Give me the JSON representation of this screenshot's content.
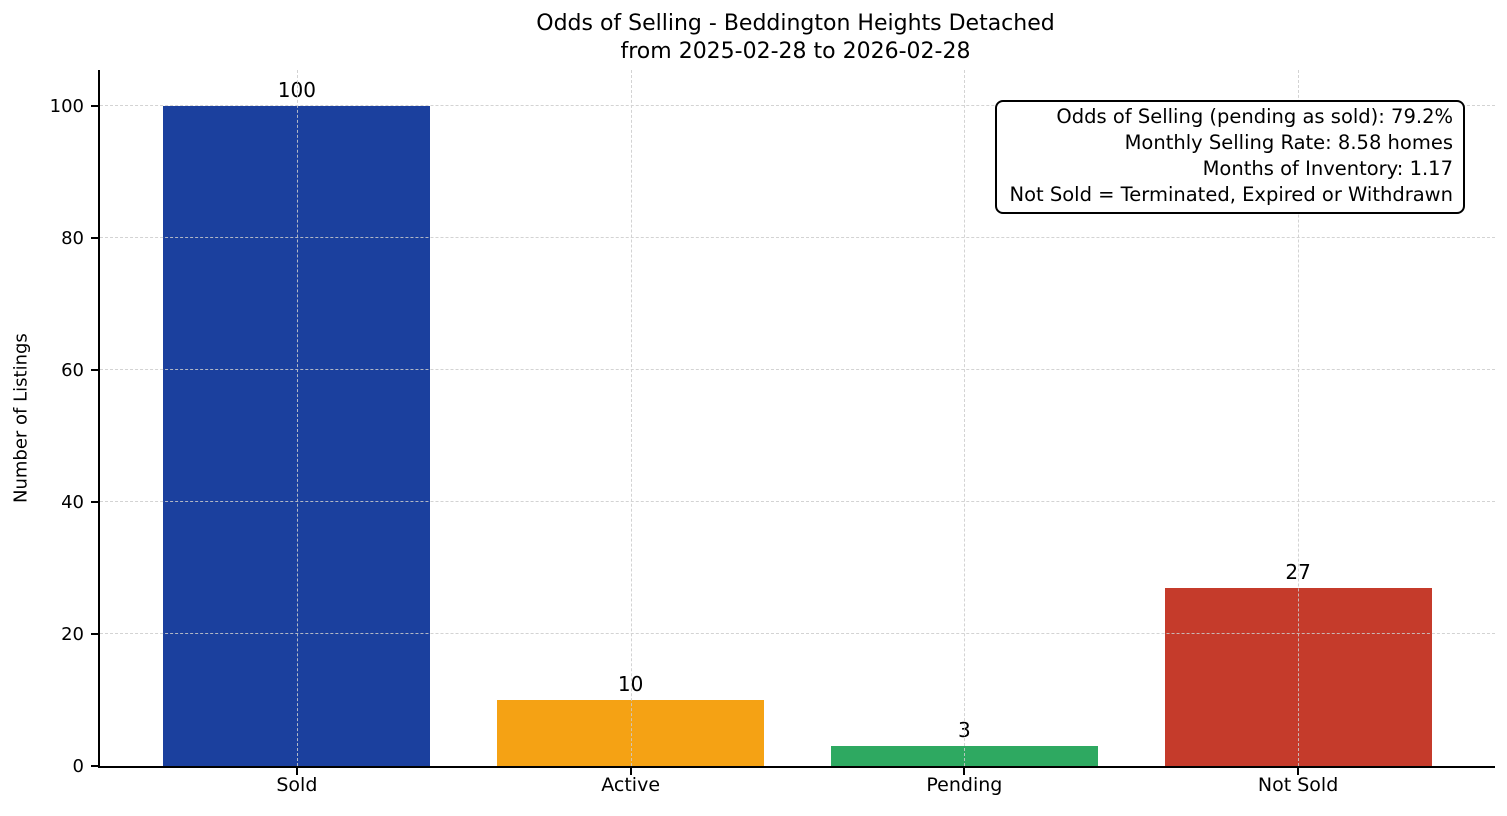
{
  "figure": {
    "background": "#ffffff",
    "text_color": "#000000"
  },
  "chart_data": {
    "type": "bar",
    "title": "Odds of Selling - Beddington Heights Detached",
    "subtitle": "from 2025-02-28 to 2026-02-28",
    "xlabel": "",
    "ylabel": "Number of Listings",
    "categories": [
      "Sold",
      "Active",
      "Pending",
      "Not Sold"
    ],
    "values": [
      100,
      10,
      3,
      27
    ],
    "value_labels": [
      "100",
      "10",
      "3",
      "27"
    ],
    "bar_colors": [
      "#1B409E",
      "#F5A214",
      "#2EA961",
      "#C53B2B"
    ],
    "yticks": [
      0,
      20,
      40,
      60,
      80,
      100
    ],
    "ylim": [
      0,
      105.5
    ],
    "xlim": [
      -0.59,
      3.59
    ],
    "bar_width": 0.8,
    "grid": "dashed",
    "grid_color": "#cccccc",
    "legend": "none",
    "annotation": {
      "lines": [
        "Odds of Selling (pending as sold): 79.2%",
        "Monthly Selling Rate: 8.58 homes",
        "Months of Inventory: 1.17",
        "Not Sold = Terminated, Expired or Withdrawn"
      ],
      "border_color": "#000000",
      "background": "#ffffff"
    }
  }
}
